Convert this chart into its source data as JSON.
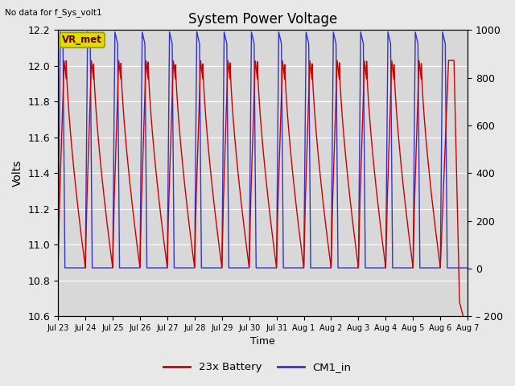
{
  "title": "System Power Voltage",
  "top_left_text": "No data for f_Sys_volt1",
  "ylabel_left": "Volts",
  "xlabel": "Time",
  "ylim_left": [
    10.6,
    12.2
  ],
  "ylim_right": [
    -200,
    1000
  ],
  "yticks_left": [
    10.6,
    10.8,
    11.0,
    11.2,
    11.4,
    11.6,
    11.8,
    12.0,
    12.2
  ],
  "yticks_right": [
    -200,
    0,
    200,
    400,
    600,
    800,
    1000
  ],
  "xtick_labels": [
    "Jul 23",
    "Jul 24",
    "Jul 25",
    "Jul 26",
    "Jul 27",
    "Jul 28",
    "Jul 29",
    "Jul 30",
    "Jul 31",
    "Aug 1",
    "Aug 2",
    "Aug 3",
    "Aug 4",
    "Aug 5",
    "Aug 6",
    "Aug 7"
  ],
  "legend_entries": [
    "23x Battery",
    "CM1_in"
  ],
  "legend_colors": [
    "#cc0000",
    "#3333cc"
  ],
  "annotation_text": "VR_met",
  "annotation_bg": "#dddd00",
  "bg_color": "#d8d8d8",
  "line_red_color": "#cc0000",
  "line_blue_color": "#3333cc",
  "grid_color": "#ffffff",
  "fig_bg": "#e8e8e8",
  "num_days": 15,
  "period": 1.0,
  "blue_base": 10.87,
  "blue_peak": 12.19,
  "red_base": 10.87,
  "red_peak": 12.03
}
